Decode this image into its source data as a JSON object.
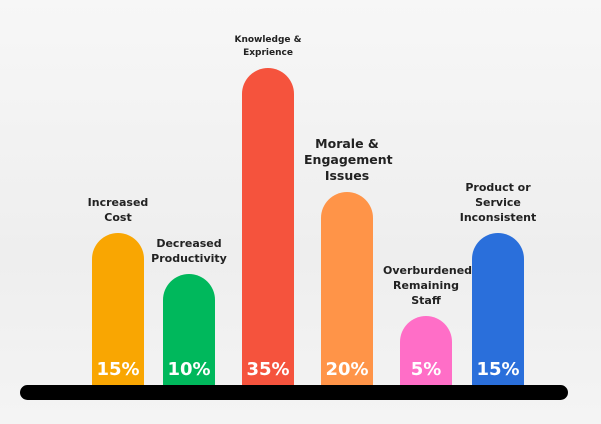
{
  "chart_data": {
    "type": "bar",
    "categories": [
      "Increased Cost",
      "Decreased Productivity",
      "Knowledge & Exprience",
      "Morale & Engagement Issues",
      "Overburdened Remaining Staff",
      "Product or Service Inconsistent"
    ],
    "values": [
      15,
      10,
      35,
      20,
      5,
      15
    ],
    "value_labels": [
      "15%",
      "10%",
      "35%",
      "20%",
      "5%",
      "15%"
    ],
    "colors": [
      "#f9a602",
      "#00b85c",
      "#f5533d",
      "#ff9448",
      "#ff6ec7",
      "#2a6fdb"
    ],
    "ylim": [
      -4,
      38
    ]
  }
}
